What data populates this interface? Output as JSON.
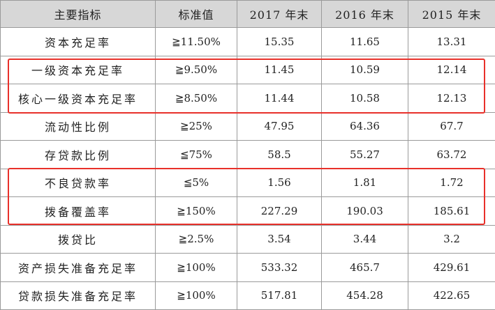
{
  "table": {
    "headers": [
      "主要指标",
      "标准值",
      "2017 年末",
      "2016 年末",
      "2015 年末"
    ],
    "rows": [
      {
        "name": "资本充足率",
        "standard": "≧11.50%",
        "y2017": "15.35",
        "y2016": "11.65",
        "y2015": "13.31"
      },
      {
        "name": "一级资本充足率",
        "standard": "≧9.50%",
        "y2017": "11.45",
        "y2016": "10.59",
        "y2015": "12.14"
      },
      {
        "name": "核心一级资本充足率",
        "standard": "≧8.50%",
        "y2017": "11.44",
        "y2016": "10.58",
        "y2015": "12.13"
      },
      {
        "name": "流动性比例",
        "standard": "≧25%",
        "y2017": "47.95",
        "y2016": "64.36",
        "y2015": "67.7"
      },
      {
        "name": "存贷款比例",
        "standard": "≦75%",
        "y2017": "58.5",
        "y2016": "55.27",
        "y2015": "63.72"
      },
      {
        "name": "不良贷款率",
        "standard": "≦5%",
        "y2017": "1.56",
        "y2016": "1.81",
        "y2015": "1.72"
      },
      {
        "name": "拨备覆盖率",
        "standard": "≧150%",
        "y2017": "227.29",
        "y2016": "190.03",
        "y2015": "185.61"
      },
      {
        "name": "拨贷比",
        "standard": "≧2.5%",
        "y2017": "3.54",
        "y2016": "3.44",
        "y2015": "3.2"
      },
      {
        "name": "资产损失准备充足率",
        "standard": "≧100%",
        "y2017": "533.32",
        "y2016": "465.7",
        "y2015": "429.61"
      },
      {
        "name": "贷款损失准备充足率",
        "standard": "≧100%",
        "y2017": "517.81",
        "y2016": "454.28",
        "y2015": "422.65"
      }
    ]
  },
  "highlight_color": "#e8302a",
  "header_bg": "#d7d7d7",
  "border_color": "#9a9a9a"
}
